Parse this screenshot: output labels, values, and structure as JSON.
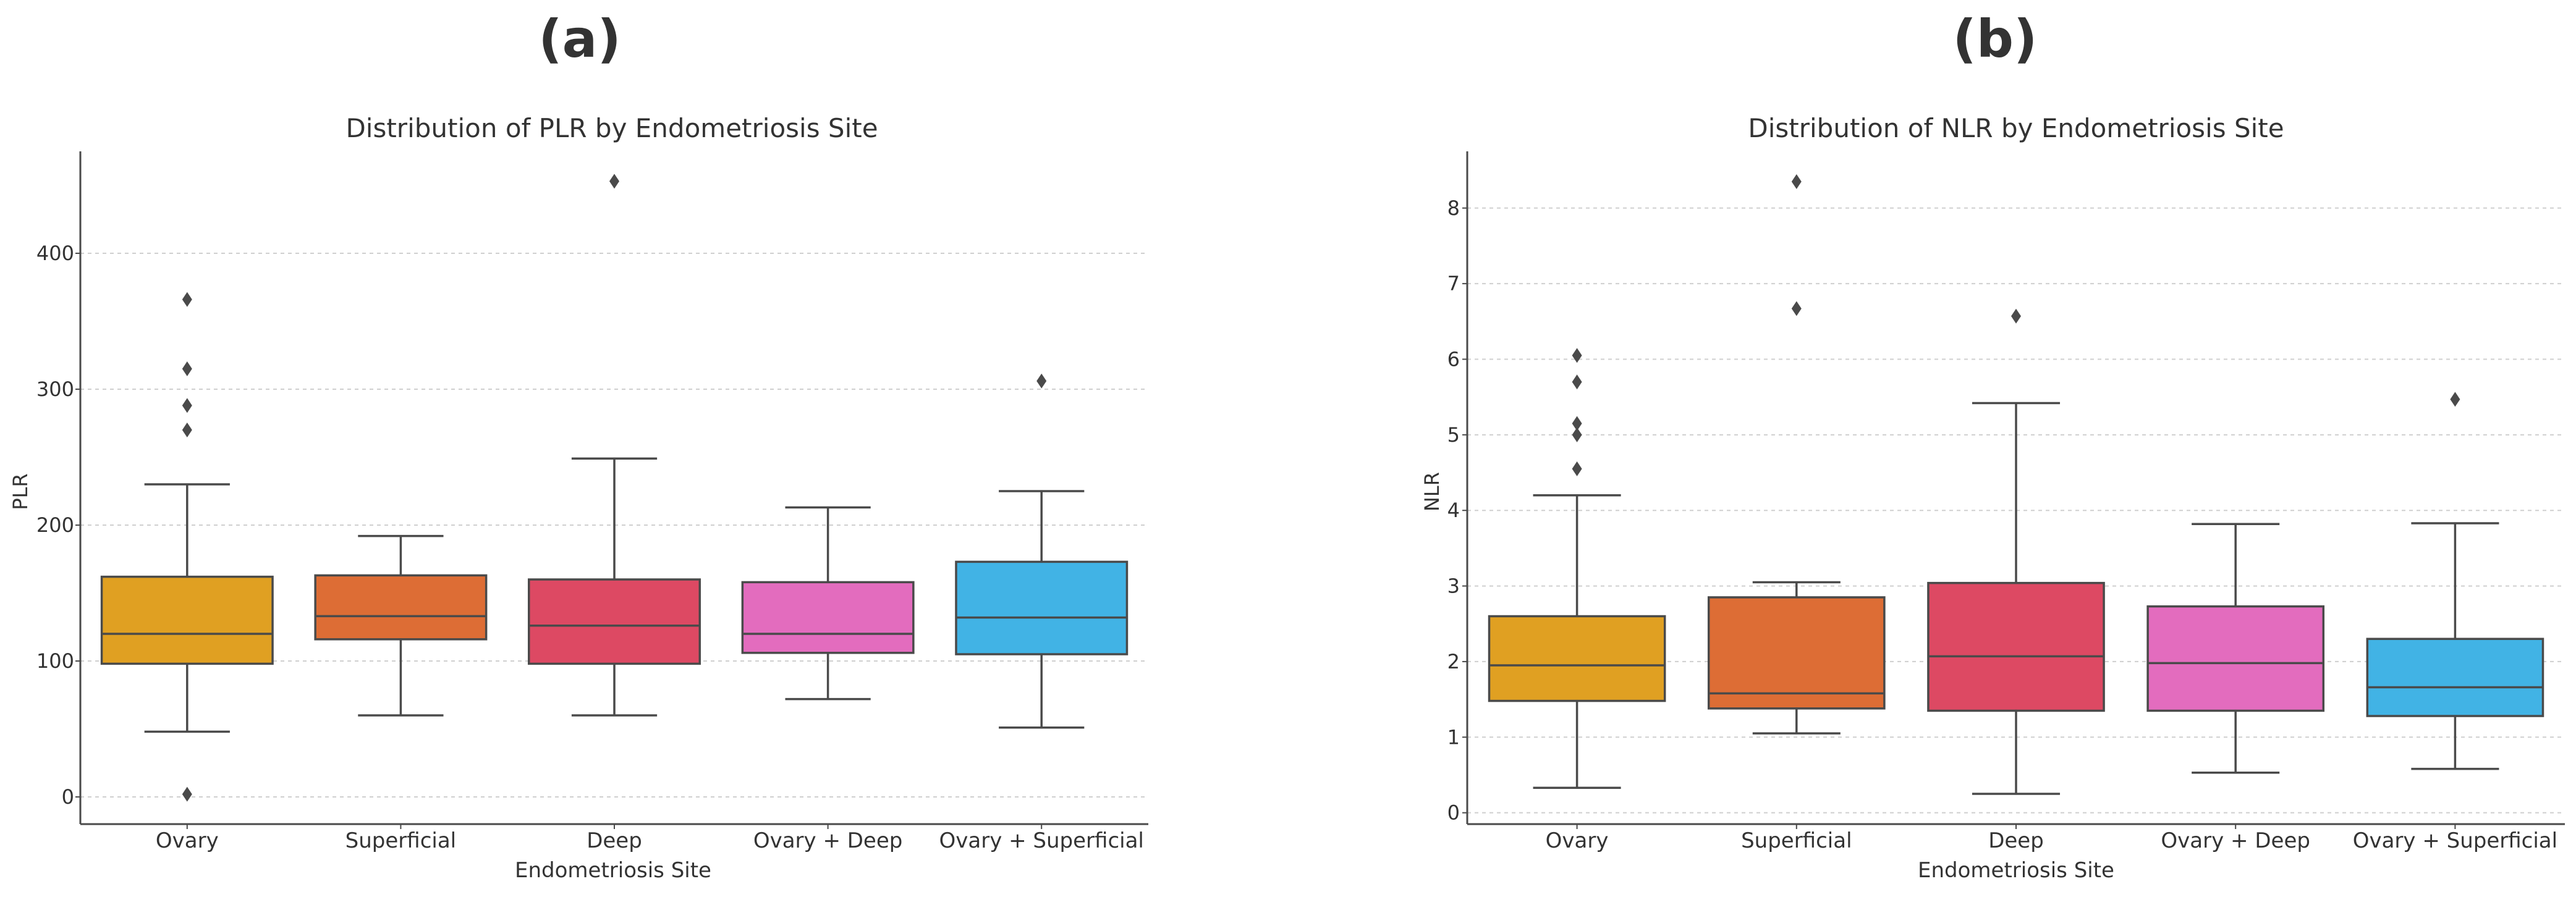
{
  "panels": [
    {
      "letter": "(a)",
      "chart_data": {
        "type": "box",
        "title": "Distribution of PLR by Endometriosis Site",
        "xlabel": "Endometriosis Site",
        "ylabel": "PLR",
        "categories": [
          "Ovary",
          "Superficial",
          "Deep",
          "Ovary + Deep",
          "Ovary + Superficial"
        ],
        "yticks": [
          0,
          100,
          200,
          300,
          400
        ],
        "ylim": [
          -20,
          475
        ],
        "grid": "horizontal dashed",
        "boxes": [
          {
            "category": "Ovary",
            "whisker_low": 48,
            "q1": 98,
            "median": 120,
            "q3": 162,
            "whisker_high": 230,
            "outliers": [
              2,
              270,
              288,
              315,
              366
            ]
          },
          {
            "category": "Superficial",
            "whisker_low": 60,
            "q1": 116,
            "median": 133,
            "q3": 163,
            "whisker_high": 192,
            "outliers": []
          },
          {
            "category": "Deep",
            "whisker_low": 60,
            "q1": 98,
            "median": 126,
            "q3": 160,
            "whisker_high": 249,
            "outliers": [
              453
            ]
          },
          {
            "category": "Ovary + Deep",
            "whisker_low": 72,
            "q1": 106,
            "median": 120,
            "q3": 158,
            "whisker_high": 213,
            "outliers": []
          },
          {
            "category": "Ovary + Superficial",
            "whisker_low": 51,
            "q1": 105,
            "median": 132,
            "q3": 173,
            "whisker_high": 225,
            "outliers": [
              306
            ]
          }
        ]
      }
    },
    {
      "letter": "(b)",
      "chart_data": {
        "type": "box",
        "title": "Distribution of NLR by Endometriosis Site",
        "xlabel": "Endometriosis Site",
        "ylabel": "NLR",
        "categories": [
          "Ovary",
          "Superficial",
          "Deep",
          "Ovary + Deep",
          "Ovary + Superficial"
        ],
        "yticks": [
          0,
          1,
          2,
          3,
          4,
          5,
          6,
          7,
          8
        ],
        "ylim": [
          -0.15,
          8.75
        ],
        "grid": "horizontal dashed",
        "boxes": [
          {
            "category": "Ovary",
            "whisker_low": 0.33,
            "q1": 1.48,
            "median": 1.95,
            "q3": 2.6,
            "whisker_high": 4.2,
            "outliers": [
              4.55,
              5.0,
              5.15,
              5.7,
              6.05
            ]
          },
          {
            "category": "Superficial",
            "whisker_low": 1.05,
            "q1": 1.38,
            "median": 1.58,
            "q3": 2.85,
            "whisker_high": 3.05,
            "outliers": [
              6.67,
              8.35
            ]
          },
          {
            "category": "Deep",
            "whisker_low": 0.25,
            "q1": 1.35,
            "median": 2.07,
            "q3": 3.04,
            "whisker_high": 5.42,
            "outliers": [
              6.57
            ]
          },
          {
            "category": "Ovary + Deep",
            "whisker_low": 0.53,
            "q1": 1.35,
            "median": 1.98,
            "q3": 2.73,
            "whisker_high": 3.82,
            "outliers": []
          },
          {
            "category": "Ovary + Superficial",
            "whisker_low": 0.58,
            "q1": 1.28,
            "median": 1.66,
            "q3": 2.3,
            "whisker_high": 3.83,
            "outliers": [
              5.47
            ]
          }
        ]
      }
    }
  ],
  "colors": {
    "box_fills": [
      "#e0a022",
      "#dd6d35",
      "#dd4963",
      "#e36cbe",
      "#41b3e5"
    ],
    "line": "#4a4a4a",
    "grid": "#cfcfcf",
    "text": "#333333"
  }
}
